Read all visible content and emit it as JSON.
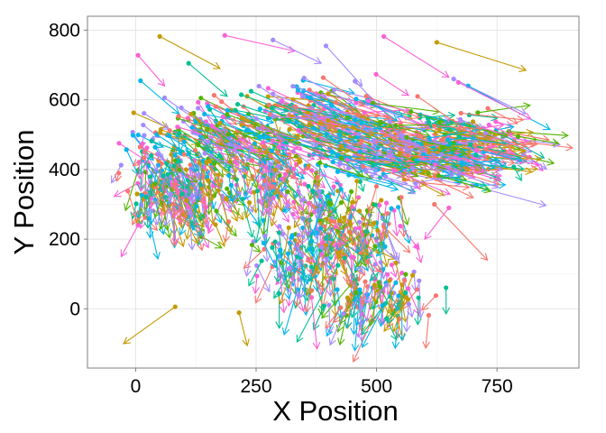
{
  "chart_data": {
    "type": "scatter",
    "subtype": "vector-field",
    "title": "",
    "xlabel": "X Position",
    "ylabel": "Y Position",
    "xlim": [
      -100,
      920
    ],
    "ylim": [
      -170,
      840
    ],
    "x_ticks": [
      0,
      250,
      500,
      750
    ],
    "y_ticks": [
      0,
      200,
      400,
      600,
      800
    ],
    "grid": true,
    "legend": "none",
    "colors": [
      "#F8766D",
      "#C49A00",
      "#53B400",
      "#00C094",
      "#00B6EB",
      "#A58AFF",
      "#FB61D7"
    ],
    "segments": [
      {
        "x": 50,
        "y": 782,
        "xend": 175,
        "yend": 690,
        "color": "#C49A00"
      },
      {
        "x": 185,
        "y": 785,
        "xend": 330,
        "yend": 740,
        "color": "#FB61D7"
      },
      {
        "x": 285,
        "y": 772,
        "xend": 385,
        "yend": 705,
        "color": "#A58AFF"
      },
      {
        "x": 395,
        "y": 755,
        "xend": 470,
        "yend": 640,
        "color": "#A58AFF"
      },
      {
        "x": 515,
        "y": 782,
        "xend": 650,
        "yend": 665,
        "color": "#FB61D7"
      },
      {
        "x": 625,
        "y": 765,
        "xend": 810,
        "yend": 685,
        "color": "#C49A00"
      },
      {
        "x": 82,
        "y": 6,
        "xend": -25,
        "yend": -100,
        "color": "#C49A00"
      },
      {
        "x": 5,
        "y": 240,
        "xend": -30,
        "yend": 150,
        "color": "#FB61D7"
      },
      {
        "x": 5,
        "y": 728,
        "xend": 60,
        "yend": 640,
        "color": "#FB61D7"
      },
      {
        "x": 10,
        "y": 655,
        "xend": 90,
        "yend": 560,
        "color": "#00B6EB"
      },
      {
        "x": 110,
        "y": 705,
        "xend": 190,
        "yend": 610,
        "color": "#00C094"
      },
      {
        "x": 660,
        "y": 660,
        "xend": 810,
        "yend": 560,
        "color": "#A58AFF"
      },
      {
        "x": 690,
        "y": 640,
        "xend": 860,
        "yend": 515,
        "color": "#00B6EB"
      },
      {
        "x": 670,
        "y": 650,
        "xend": 820,
        "yend": 545,
        "color": "#FB61D7"
      },
      {
        "x": 585,
        "y": 610,
        "xend": 700,
        "yend": 500,
        "color": "#F8766D"
      },
      {
        "x": 620,
        "y": 300,
        "xend": 730,
        "yend": 140,
        "color": "#F8766D"
      },
      {
        "x": 650,
        "y": 290,
        "xend": 600,
        "yend": 200,
        "color": "#FB61D7"
      },
      {
        "x": 420,
        "y": 125,
        "xend": 335,
        "yend": -95,
        "color": "#00C094"
      },
      {
        "x": 465,
        "y": 55,
        "xend": 455,
        "yend": -120,
        "color": "#00B6EB"
      },
      {
        "x": 540,
        "y": 75,
        "xend": 470,
        "yend": -110,
        "color": "#00B6EB"
      }
    ],
    "cloud_segment_count": 1200
  }
}
